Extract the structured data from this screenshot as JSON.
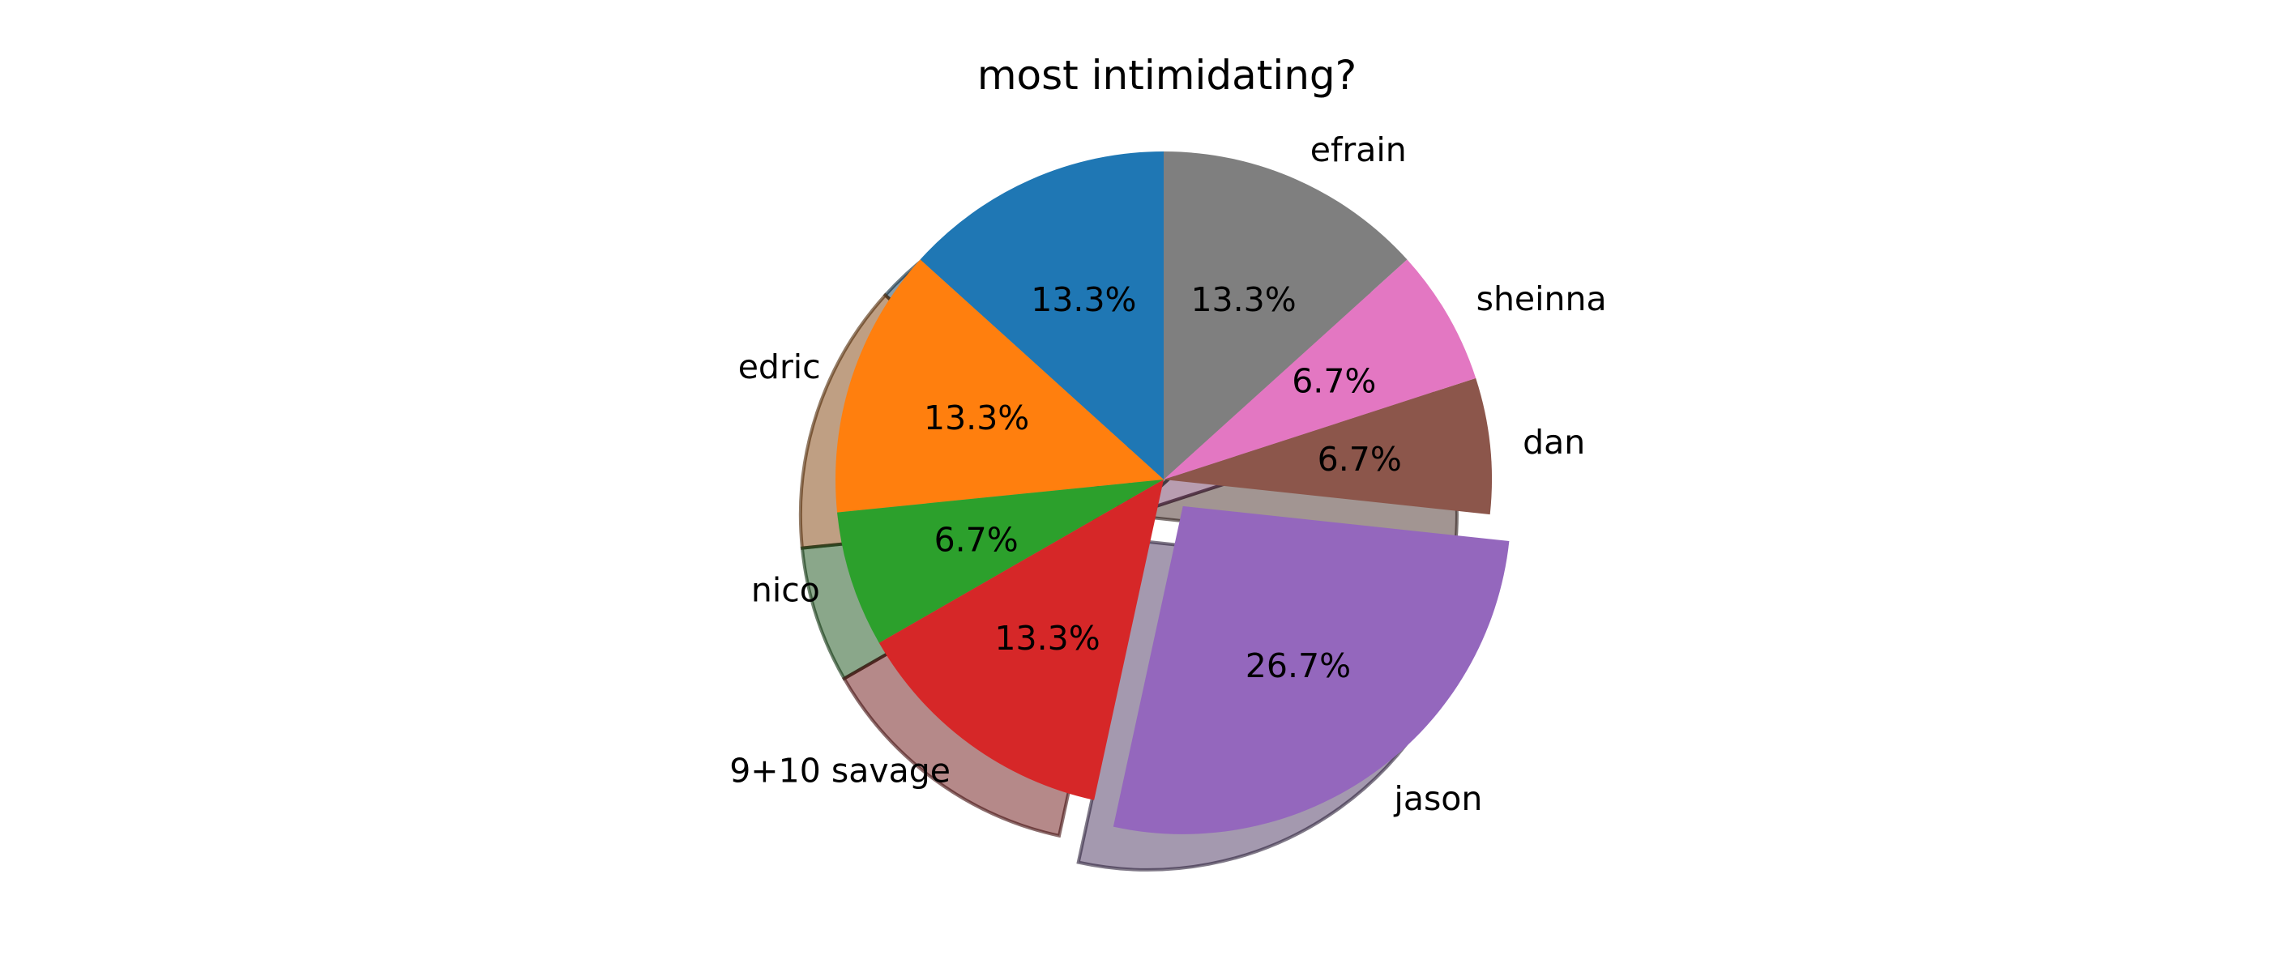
{
  "chart_data": {
    "type": "pie",
    "title": "most intimidating?",
    "start_angle_deg": 90,
    "direction": "counterclockwise",
    "shadow": true,
    "slices": [
      {
        "label": "",
        "value": 13.3,
        "pct_label": "13.3%",
        "color": "#1f77b4",
        "exploded": false
      },
      {
        "label": "edric",
        "value": 13.3,
        "pct_label": "13.3%",
        "color": "#ff7f0e",
        "exploded": false
      },
      {
        "label": "nico",
        "value": 6.7,
        "pct_label": "6.7%",
        "color": "#2ca02c",
        "exploded": false
      },
      {
        "label": "9+10 savage",
        "value": 13.3,
        "pct_label": "13.3%",
        "color": "#d62728",
        "exploded": false
      },
      {
        "label": "jason",
        "value": 26.7,
        "pct_label": "26.7%",
        "color": "#9467bd",
        "exploded": true
      },
      {
        "label": "dan",
        "value": 6.7,
        "pct_label": "6.7%",
        "color": "#8c564b",
        "exploded": false
      },
      {
        "label": "sheinna",
        "value": 6.7,
        "pct_label": "6.7%",
        "color": "#e377c2",
        "exploded": false
      },
      {
        "label": "efrain",
        "value": 13.3,
        "pct_label": "13.3%",
        "color": "#7f7f7f",
        "exploded": false
      }
    ]
  }
}
